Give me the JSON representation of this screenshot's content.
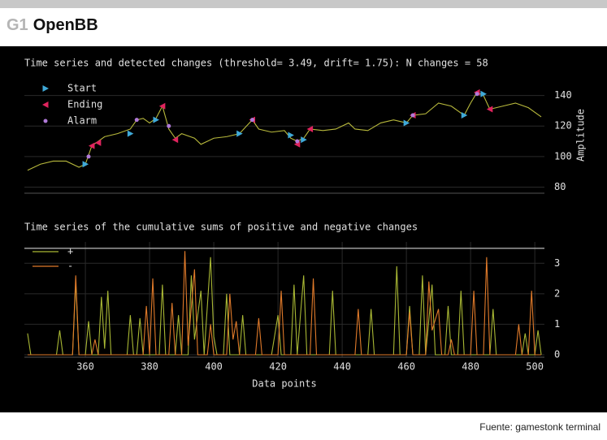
{
  "header": {
    "code": "G1",
    "title": "OpenBB"
  },
  "footer": "Fuente: gamestonk terminal",
  "chart_data": [
    {
      "type": "line",
      "title": "Time series and detected changes (threshold= 3.49, drift= 1.75): N changes = 58",
      "ylabel": "Amplitude",
      "xlim": [
        341,
        503
      ],
      "ylim": [
        76,
        152
      ],
      "yticks": [
        80,
        100,
        120,
        140
      ],
      "grid": true,
      "series": [
        {
          "color": "#b8b93c",
          "x": [
            342,
            346,
            350,
            354,
            358,
            360,
            362,
            364,
            366,
            370,
            374,
            376,
            378,
            380,
            382,
            384,
            386,
            388,
            390,
            394,
            396,
            400,
            404,
            408,
            412,
            414,
            418,
            422,
            424,
            426,
            428,
            430,
            434,
            438,
            442,
            444,
            448,
            452,
            456,
            460,
            462,
            466,
            470,
            474,
            478,
            480,
            482,
            484,
            486,
            490,
            494,
            498,
            502
          ],
          "values": [
            91,
            95,
            97,
            97,
            93,
            95,
            107,
            110,
            113,
            115,
            118,
            124,
            125,
            122,
            125,
            133,
            118,
            112,
            115,
            112,
            108,
            112,
            113,
            115,
            124,
            118,
            116,
            117,
            112,
            110,
            112,
            118,
            117,
            118,
            122,
            118,
            117,
            122,
            124,
            122,
            127,
            128,
            135,
            133,
            127,
            135,
            142,
            140,
            131,
            133,
            135,
            132,
            126
          ]
        },
        {
          "name": "Start",
          "color": "#3fa9d8",
          "marker": "triangle-right",
          "x": [
            360,
            374,
            382,
            408,
            424,
            428,
            460,
            478,
            484
          ],
          "values": [
            95,
            115,
            124,
            115,
            114,
            111,
            122,
            127,
            141
          ]
        },
        {
          "name": "Ending",
          "color": "#e0245e",
          "marker": "triangle-left",
          "x": [
            362,
            364,
            384,
            388,
            412,
            426,
            430,
            462,
            482,
            486
          ],
          "values": [
            107,
            109,
            133,
            111,
            124,
            108,
            118,
            127,
            142,
            131
          ]
        },
        {
          "name": "Alarm",
          "color": "#b07ad8",
          "marker": "dot",
          "x": [
            361,
            376,
            386,
            412,
            426,
            462,
            482
          ],
          "values": [
            100,
            124,
            120,
            124,
            110,
            127,
            141
          ]
        }
      ]
    },
    {
      "type": "line",
      "title": "Time series of the cumulative sums of positive and negative changes",
      "xlabel": "Data points",
      "xlim": [
        341,
        503
      ],
      "ylim": [
        -0.08,
        3.7
      ],
      "xticks": [
        360,
        380,
        400,
        420,
        440,
        460,
        480,
        500
      ],
      "yticks": [
        0,
        1,
        2,
        3
      ],
      "grid": true,
      "hline": 3.49,
      "series": [
        {
          "name": "+",
          "color": "#a9b834",
          "x": [
            342,
            343,
            351,
            352,
            353,
            356,
            357,
            358,
            360,
            361,
            362,
            364,
            365,
            366,
            367,
            368,
            373,
            374,
            375,
            376,
            377,
            378,
            383,
            384,
            385,
            388,
            389,
            390,
            392,
            393,
            394,
            396,
            397,
            399,
            400,
            401,
            403,
            404,
            405,
            408,
            409,
            410,
            418,
            420,
            421,
            424,
            425,
            426,
            428,
            429,
            436,
            437,
            438,
            448,
            449,
            450,
            456,
            457,
            458,
            460,
            461,
            462,
            464,
            465,
            466,
            468,
            469,
            472,
            473,
            474,
            476,
            477,
            478,
            486,
            487,
            488,
            496,
            497,
            498,
            500,
            501,
            502
          ],
          "values": [
            0.7,
            0,
            0,
            0.8,
            0,
            0,
            2.4,
            0,
            0,
            1.1,
            0,
            0,
            1.9,
            0.2,
            2.1,
            0,
            0,
            1.3,
            0,
            0,
            1.2,
            0,
            0,
            2.3,
            0,
            0,
            1.3,
            0,
            0,
            2.6,
            0.5,
            2.1,
            0,
            3.2,
            0.6,
            0,
            0,
            2.0,
            0,
            0,
            1.3,
            0,
            0,
            1.3,
            0,
            0,
            2.3,
            0,
            2.6,
            0,
            0,
            2.1,
            0,
            0,
            1.5,
            0,
            0,
            2.9,
            0,
            0,
            1.6,
            0,
            0,
            2.6,
            0,
            2.3,
            0,
            0,
            1.6,
            0,
            0,
            2.1,
            0,
            0,
            1.5,
            0,
            0,
            0.7,
            0,
            0,
            0.8,
            0
          ]
        },
        {
          "name": "-",
          "color": "#e07a2a",
          "x": [
            342,
            356,
            357,
            358,
            362,
            363,
            364,
            378,
            379,
            380,
            381,
            382,
            386,
            387,
            388,
            390,
            391,
            392,
            394,
            395,
            398,
            399,
            400,
            404,
            405,
            406,
            407,
            408,
            413,
            414,
            415,
            420,
            421,
            422,
            430,
            431,
            432,
            444,
            445,
            446,
            460,
            461,
            462,
            466,
            467,
            468,
            470,
            471,
            473,
            474,
            475,
            480,
            481,
            482,
            484,
            485,
            486,
            494,
            495,
            496,
            498,
            499,
            500,
            502
          ],
          "values": [
            0,
            0,
            2.6,
            0,
            0,
            0.5,
            0,
            0,
            1.6,
            0,
            2.5,
            0,
            0,
            1.7,
            0,
            0,
            3.4,
            0.3,
            2.8,
            0,
            0,
            1.0,
            0,
            0,
            2.0,
            0.5,
            1.1,
            0,
            0,
            1.2,
            0,
            0,
            2.1,
            0,
            0,
            2.5,
            0,
            0,
            1.5,
            0,
            0,
            1.4,
            0,
            0,
            2.4,
            0.8,
            1.5,
            0,
            0,
            0.5,
            0,
            0,
            2.1,
            0,
            0,
            3.2,
            0,
            0,
            1.0,
            0,
            0,
            2.1,
            0,
            0
          ]
        }
      ]
    }
  ]
}
